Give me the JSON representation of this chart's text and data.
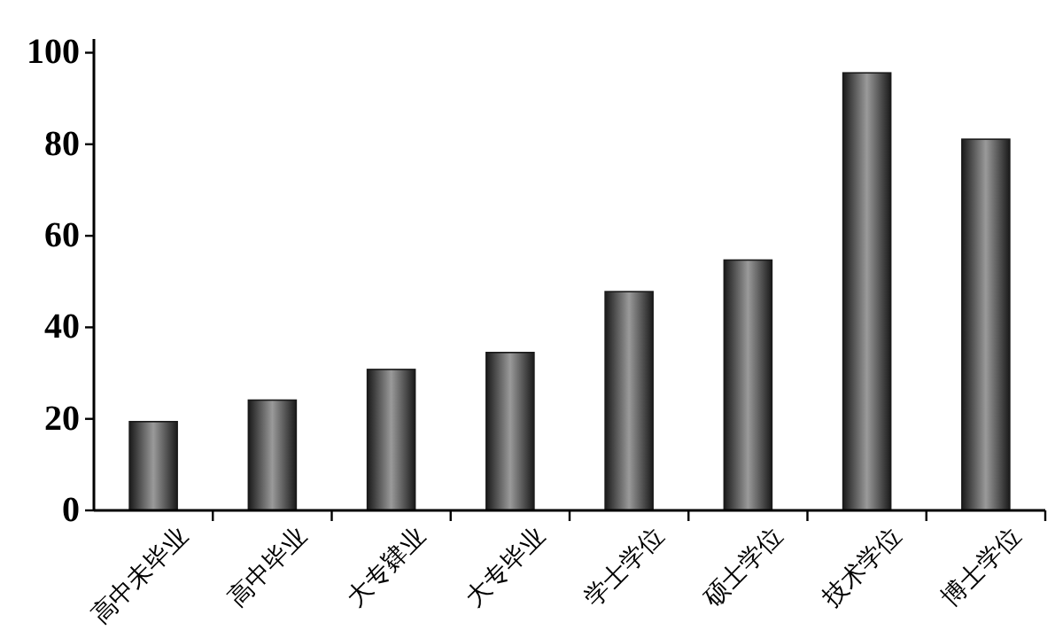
{
  "chart_data": {
    "type": "bar",
    "categories": [
      "高中未毕业",
      "高中毕业",
      "大专肄业",
      "大专毕业",
      "学士学位",
      "硕士学位",
      "技术学位",
      "博士学位"
    ],
    "values": [
      19.4,
      24.1,
      30.8,
      34.5,
      47.8,
      54.7,
      95.6,
      81.1
    ],
    "color": "#1a1a1a",
    "ylim": [
      0,
      103
    ],
    "yticks": [
      0,
      20,
      40,
      60,
      80,
      100
    ]
  }
}
